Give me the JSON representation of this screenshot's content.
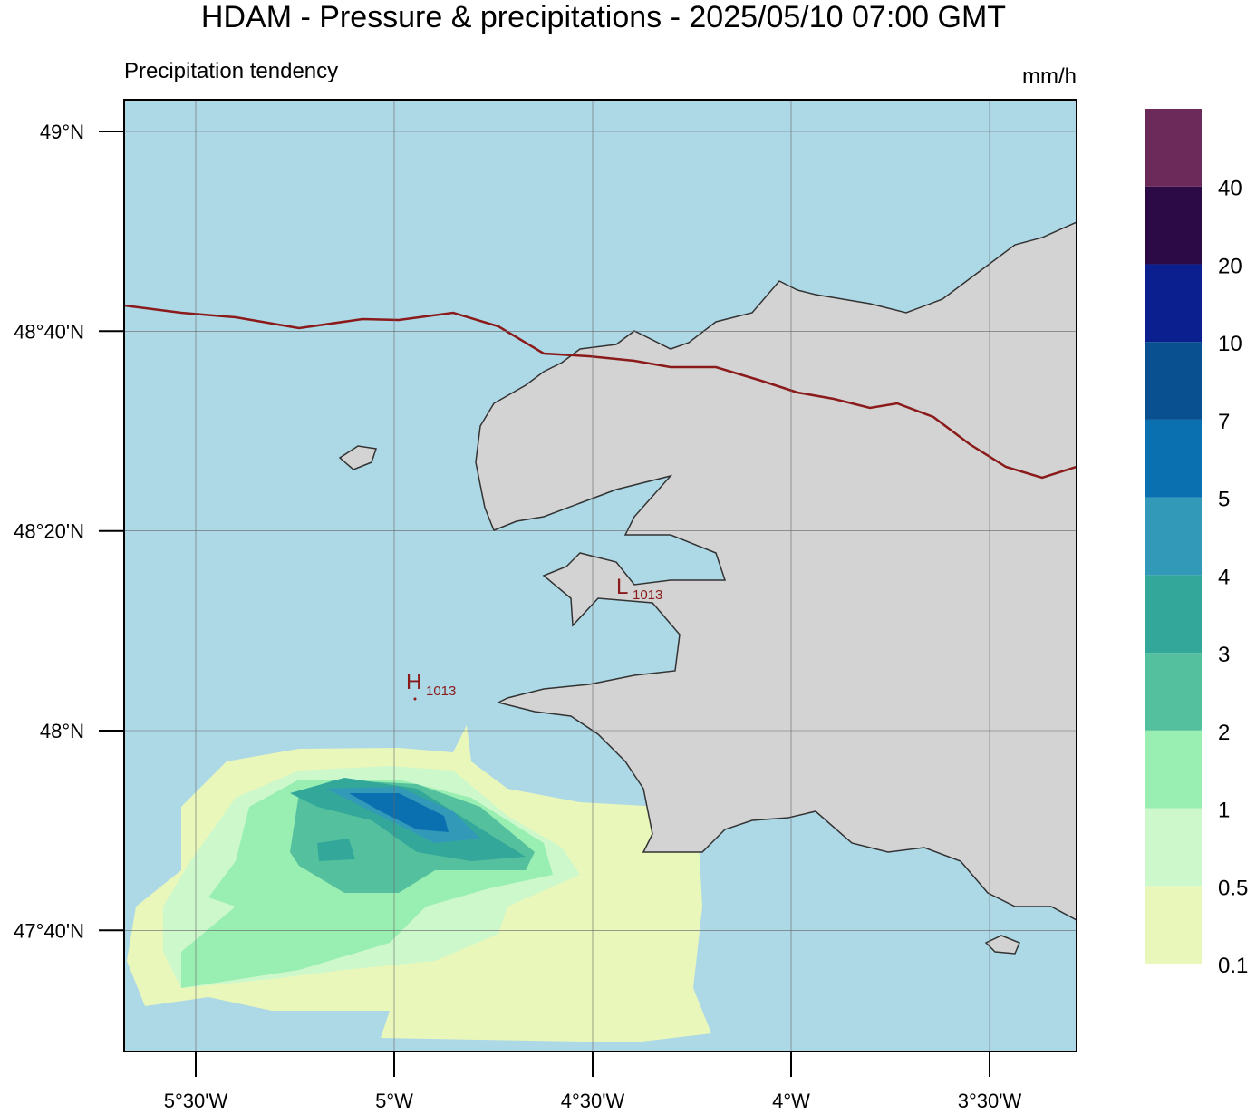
{
  "header": {
    "title": "HDAM - Pressure & precipitations  -  2025/05/10  07:00 GMT",
    "subtitle": "Precipitation tendency",
    "unit": "mm/h"
  },
  "axes": {
    "lat_ticks": [
      {
        "value": 49,
        "label": "49°N"
      },
      {
        "value": 48.6667,
        "label": "48°40'N"
      },
      {
        "value": 48.3333,
        "label": "48°20'N"
      },
      {
        "value": 48,
        "label": "48°N"
      },
      {
        "value": 47.6667,
        "label": "47°40'N"
      }
    ],
    "lon_ticks": [
      {
        "value": -5.5,
        "label": "5°30'W"
      },
      {
        "value": -5,
        "label": "5°W"
      },
      {
        "value": -4.5,
        "label": "4°30'W"
      },
      {
        "value": -4,
        "label": "4°W"
      },
      {
        "value": -3.5,
        "label": "3°30'W"
      }
    ]
  },
  "pressure": {
    "high": {
      "symbol": "H",
      "value": 1013
    },
    "low": {
      "symbol": "L",
      "value": 1013
    }
  },
  "legend": {
    "levels": [
      0.1,
      0.5,
      1,
      2,
      3,
      4,
      5,
      7,
      10,
      20,
      40
    ],
    "colors": [
      "#eaf7bb",
      "#ccf8cc",
      "#99eeb2",
      "#55c09e",
      "#33a89a",
      "#3399b8",
      "#0a70b0",
      "#085090",
      "#0c1f8f",
      "#2b0a45",
      "#6b2a5a"
    ]
  }
}
